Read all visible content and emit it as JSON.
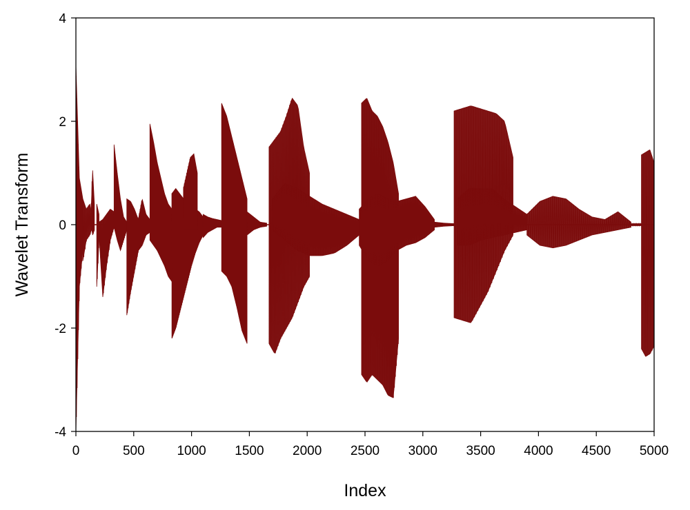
{
  "chart_data": {
    "type": "line",
    "title": "",
    "xlabel": "Index",
    "ylabel": "Wavelet Transform",
    "xlim": [
      0,
      5000
    ],
    "ylim": [
      -4,
      4
    ],
    "xticks": [
      0,
      500,
      1000,
      1500,
      2000,
      2500,
      3000,
      3500,
      4000,
      4500,
      5000
    ],
    "yticks": [
      -4,
      -2,
      0,
      2,
      4
    ],
    "xtick_labels": [
      "0",
      "500",
      "1000",
      "1500",
      "2000",
      "2500",
      "3000",
      "3500",
      "4000",
      "4500",
      "5000"
    ],
    "ytick_labels": [
      "-4",
      "-2",
      "0",
      "2",
      "4"
    ],
    "grid": false,
    "legend": "none",
    "series": [
      {
        "color": "#7b0c0c",
        "segments": [
          {
            "x0": 0,
            "x1": 60,
            "upper": [
              3.1,
              0.9,
              0.5
            ],
            "lower": [
              -4.0,
              -1.2,
              -0.5
            ],
            "spikes": 10
          },
          {
            "x0": 60,
            "x1": 150,
            "upper": [
              0.5,
              0.3,
              0.4,
              0.0
            ],
            "lower": [
              -0.7,
              -0.3,
              -0.2,
              0.0
            ],
            "spikes": 8
          },
          {
            "x0": 130,
            "x1": 160,
            "upper": [
              0.2,
              1.05,
              0.4
            ],
            "lower": [
              0.0,
              -0.2,
              -0.1
            ],
            "spikes": 4
          },
          {
            "x0": 180,
            "x1": 200,
            "upper": [
              0.4,
              0.2
            ],
            "lower": [
              -1.2,
              -0.3
            ],
            "spikes": 3
          },
          {
            "x0": 200,
            "x1": 330,
            "upper": [
              0.05,
              0.1,
              0.2,
              0.3,
              0.25
            ],
            "lower": [
              -0.2,
              -1.4,
              -0.8,
              -0.3,
              -0.05
            ],
            "spikes": 16
          },
          {
            "x0": 330,
            "x1": 440,
            "upper": [
              1.55,
              1.0,
              0.5,
              0.15,
              0.05
            ],
            "lower": [
              -0.05,
              -0.3,
              -0.5,
              -0.3,
              -0.1
            ],
            "spikes": 18
          },
          {
            "x0": 440,
            "x1": 640,
            "upper": [
              0.5,
              0.45,
              0.3,
              0.1,
              0.5,
              0.2,
              0.1
            ],
            "lower": [
              -1.75,
              -1.3,
              -0.9,
              -0.5,
              -0.4,
              -0.2,
              -0.15
            ],
            "spikes": 30
          },
          {
            "x0": 640,
            "x1": 830,
            "upper": [
              1.95,
              1.6,
              1.2,
              0.9,
              0.6,
              0.4,
              0.3
            ],
            "lower": [
              -0.3,
              -0.4,
              -0.5,
              -0.65,
              -0.8,
              -1.0,
              -1.1
            ],
            "spikes": 32
          },
          {
            "x0": 830,
            "x1": 1100,
            "upper": [
              0.6,
              0.7,
              0.6,
              0.5,
              0.45,
              0.4,
              0.3,
              0.25,
              0.15
            ],
            "lower": [
              -2.2,
              -2.0,
              -1.7,
              -1.4,
              -1.1,
              -0.8,
              -0.55,
              -0.35,
              -0.2
            ],
            "spikes": 50
          },
          {
            "x0": 930,
            "x1": 1050,
            "upper": [
              0.7,
              1.0,
              1.3,
              1.37,
              1.0
            ],
            "lower": [
              -0.1,
              -0.1,
              -0.1,
              -0.1,
              -0.1
            ],
            "spikes": 18
          },
          {
            "x0": 1100,
            "x1": 1260,
            "upper": [
              0.2,
              0.15,
              0.12,
              0.1,
              0.08
            ],
            "lower": [
              -0.25,
              -0.15,
              -0.1,
              -0.05,
              -0.05
            ],
            "spikes": 24
          },
          {
            "x0": 1260,
            "x1": 1480,
            "upper": [
              2.35,
              2.1,
              1.7,
              1.3,
              0.9,
              0.5
            ],
            "lower": [
              -0.9,
              -1.0,
              -1.2,
              -1.6,
              -2.05,
              -2.3
            ],
            "spikes": 42
          },
          {
            "x0": 1480,
            "x1": 1650,
            "upper": [
              0.25,
              0.15,
              0.05,
              0.03
            ],
            "lower": [
              -0.2,
              -0.1,
              -0.05,
              -0.03
            ],
            "spikes": 20
          },
          {
            "x0": 1670,
            "x1": 2020,
            "upper": [
              1.5,
              1.65,
              1.8,
              2.1,
              2.45,
              2.3,
              1.5,
              1.0
            ],
            "lower": [
              -2.3,
              -2.5,
              -2.2,
              -2.0,
              -1.8,
              -1.5,
              -1.2,
              -1.0
            ],
            "spikes": 30
          },
          {
            "x0": 1700,
            "x1": 2450,
            "upper": [
              0.5,
              0.8,
              0.7,
              0.55,
              0.4,
              0.3,
              0.2,
              0.1
            ],
            "lower": [
              -0.1,
              -0.3,
              -0.5,
              -0.6,
              -0.6,
              -0.55,
              -0.4,
              -0.2
            ],
            "spikes": 90
          },
          {
            "x0": 2470,
            "x1": 2790,
            "upper": [
              2.35,
              2.45,
              2.2,
              2.1,
              1.9,
              1.6,
              1.2,
              0.6
            ],
            "lower": [
              -2.9,
              -3.05,
              -2.9,
              -3.0,
              -3.1,
              -3.3,
              -3.35,
              -2.2
            ],
            "spikes": 38
          },
          {
            "x0": 2450,
            "x1": 3100,
            "upper": [
              0.3,
              0.5,
              0.6,
              0.5,
              0.45,
              0.5,
              0.55,
              0.35,
              0.1
            ],
            "lower": [
              -0.4,
              -0.7,
              -0.8,
              -0.7,
              -0.5,
              -0.4,
              -0.35,
              -0.25,
              -0.1
            ],
            "spikes": 80
          },
          {
            "x0": 3100,
            "x1": 3270,
            "upper": [
              0.05,
              0.03,
              0.02
            ],
            "lower": [
              -0.05,
              -0.03,
              -0.02
            ],
            "spikes": 20
          },
          {
            "x0": 3270,
            "x1": 3780,
            "upper": [
              2.2,
              2.25,
              2.3,
              2.25,
              2.2,
              2.15,
              2.0,
              1.3
            ],
            "lower": [
              -1.8,
              -1.85,
              -1.9,
              -1.6,
              -1.3,
              -0.9,
              -0.5,
              -0.2
            ],
            "spikes": 34
          },
          {
            "x0": 3300,
            "x1": 3900,
            "upper": [
              0.5,
              0.7,
              0.7,
              0.7,
              0.5,
              0.35,
              0.2
            ],
            "lower": [
              -0.4,
              -0.4,
              -0.3,
              -0.25,
              -0.2,
              -0.15,
              -0.1
            ],
            "spikes": 60
          },
          {
            "x0": 3900,
            "x1": 4800,
            "upper": [
              0.2,
              0.45,
              0.55,
              0.5,
              0.3,
              0.15,
              0.1,
              0.25,
              0.05
            ],
            "lower": [
              -0.2,
              -0.4,
              -0.45,
              -0.4,
              -0.3,
              -0.2,
              -0.15,
              -0.1,
              -0.05
            ],
            "spikes": 50
          },
          {
            "x0": 4800,
            "x1": 4890,
            "upper": [
              0.02,
              0.02
            ],
            "lower": [
              -0.02,
              -0.02
            ],
            "spikes": 6
          },
          {
            "x0": 4890,
            "x1": 5000,
            "upper": [
              1.35,
              1.4,
              1.45,
              1.2
            ],
            "lower": [
              -2.4,
              -2.55,
              -2.5,
              -2.35
            ],
            "spikes": 8
          }
        ]
      }
    ]
  }
}
